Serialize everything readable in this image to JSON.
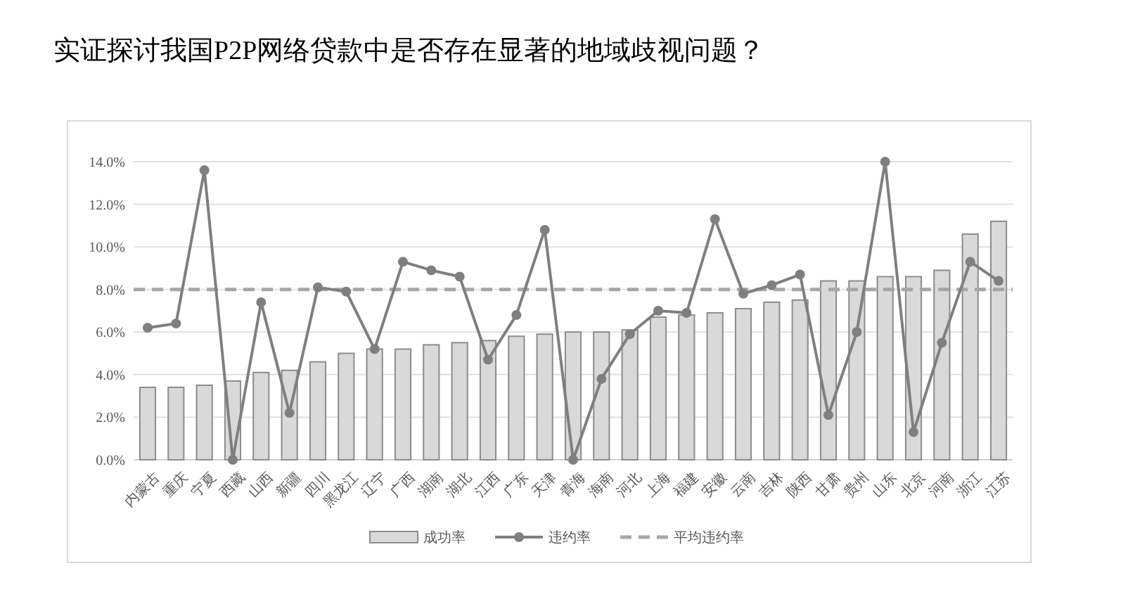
{
  "chart_data": {
    "type": "bar",
    "title": "实证探讨我国P2P网络贷款中是否存在显著的地域歧视问题？",
    "categories": [
      "内蒙古",
      "重庆",
      "宁夏",
      "西藏",
      "山西",
      "新疆",
      "四川",
      "黑龙江",
      "辽宁",
      "广西",
      "湖南",
      "湖北",
      "江西",
      "广东",
      "天津",
      "青海",
      "海南",
      "河北",
      "上海",
      "福建",
      "安徽",
      "云南",
      "吉林",
      "陕西",
      "甘肃",
      "贵州",
      "山东",
      "北京",
      "河南",
      "浙江",
      "江苏"
    ],
    "series": [
      {
        "name": "成功率",
        "color": "#d9d9d9",
        "values": [
          3.4,
          3.4,
          3.5,
          3.7,
          4.1,
          4.2,
          4.6,
          5.0,
          5.2,
          5.2,
          5.4,
          5.5,
          5.6,
          5.8,
          5.9,
          6.0,
          6.0,
          6.1,
          6.7,
          6.8,
          6.9,
          7.1,
          7.4,
          7.5,
          8.4,
          8.4,
          8.6,
          8.6,
          8.9,
          10.6,
          11.2
        ]
      },
      {
        "name": "违约率",
        "type": "line",
        "color": "#7f7f7f",
        "marker": "circle",
        "values": [
          6.2,
          6.4,
          13.6,
          0.0,
          7.4,
          2.2,
          8.1,
          7.9,
          5.2,
          9.3,
          8.9,
          8.6,
          4.7,
          6.8,
          10.8,
          0.0,
          3.8,
          5.9,
          7.0,
          6.9,
          11.3,
          7.8,
          8.2,
          8.7,
          2.1,
          6.0,
          14.0,
          1.3,
          5.5,
          9.3,
          8.4
        ]
      }
    ],
    "ref_lines": [
      {
        "axis": "y",
        "value": 8.0,
        "label": "平均违约率",
        "color": "#a6a6a6",
        "line_style": "dashed"
      }
    ],
    "ylim": [
      0,
      14
    ],
    "yticks": [
      {
        "value": 0,
        "label": "0.0%"
      },
      {
        "value": 2,
        "label": "2.0%"
      },
      {
        "value": 4,
        "label": "4.0%"
      },
      {
        "value": 6,
        "label": "6.0%"
      },
      {
        "value": 8,
        "label": "8.0%"
      },
      {
        "value": 10,
        "label": "10.0%"
      },
      {
        "value": 12,
        "label": "12.0%"
      },
      {
        "value": 14,
        "label": "14.0%"
      }
    ],
    "grid": "y",
    "legend": "bottom"
  }
}
